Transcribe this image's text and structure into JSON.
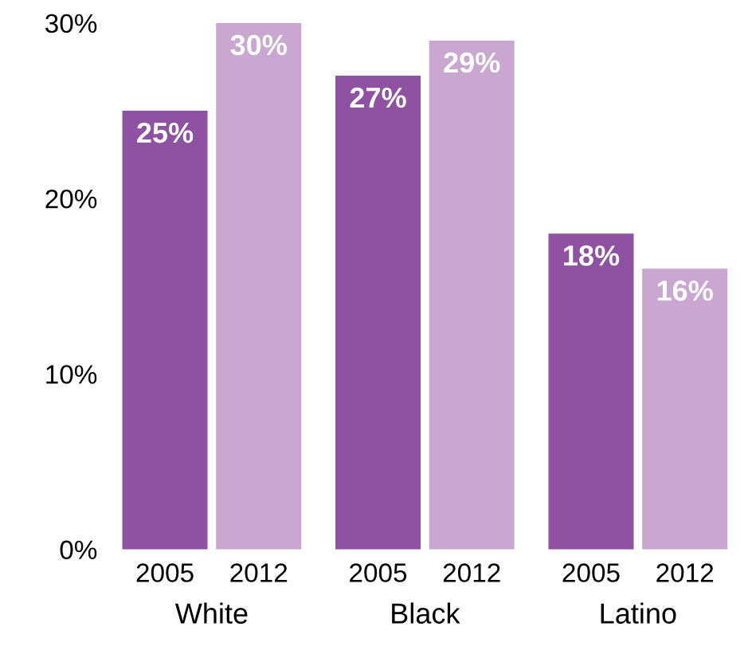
{
  "chart_data": {
    "type": "bar",
    "categories": [
      "White",
      "Black",
      "Latino"
    ],
    "series": [
      {
        "name": "2005",
        "color": "#8f51a1",
        "values": [
          25,
          27,
          18
        ],
        "value_labels": [
          "25%",
          "27%",
          "18%"
        ]
      },
      {
        "name": "2012",
        "color": "#c9a7d1",
        "values": [
          30,
          29,
          16
        ],
        "value_labels": [
          "30%",
          "29%",
          "16%"
        ]
      }
    ],
    "ylim": [
      0,
      30
    ],
    "yticks": [
      {
        "value": 0,
        "label": "0%"
      },
      {
        "value": 10,
        "label": "10%"
      },
      {
        "value": 20,
        "label": "20%"
      },
      {
        "value": 30,
        "label": "30%"
      }
    ],
    "grid": false,
    "legend": false
  }
}
